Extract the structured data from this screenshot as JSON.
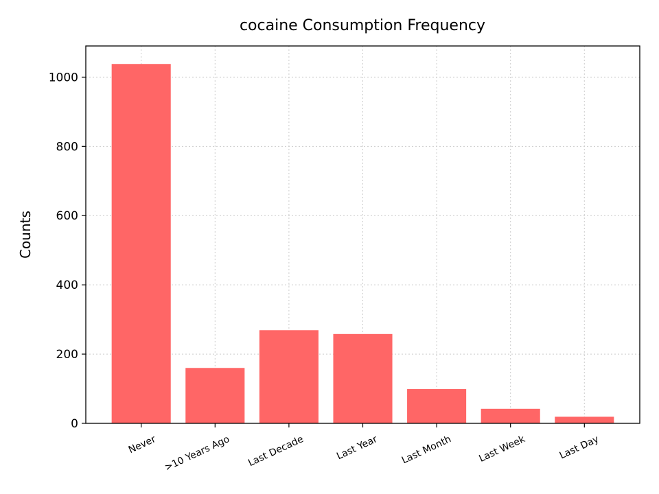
{
  "chart_data": {
    "type": "bar",
    "title": "cocaine Consumption Frequency",
    "xlabel": "",
    "ylabel": "Counts",
    "categories": [
      "Never",
      ">10 Years Ago",
      "Last Decade",
      "Last Year",
      "Last Month",
      "Last Week",
      "Last Day"
    ],
    "values": [
      1038,
      160,
      269,
      258,
      99,
      42,
      19
    ],
    "ylim": [
      0,
      1090
    ],
    "yticks": [
      0,
      200,
      400,
      600,
      800,
      1000
    ],
    "grid": true,
    "bar_color": "#ff6666",
    "grid_color": "#cccccc",
    "xtick_rotation_deg": -25
  }
}
